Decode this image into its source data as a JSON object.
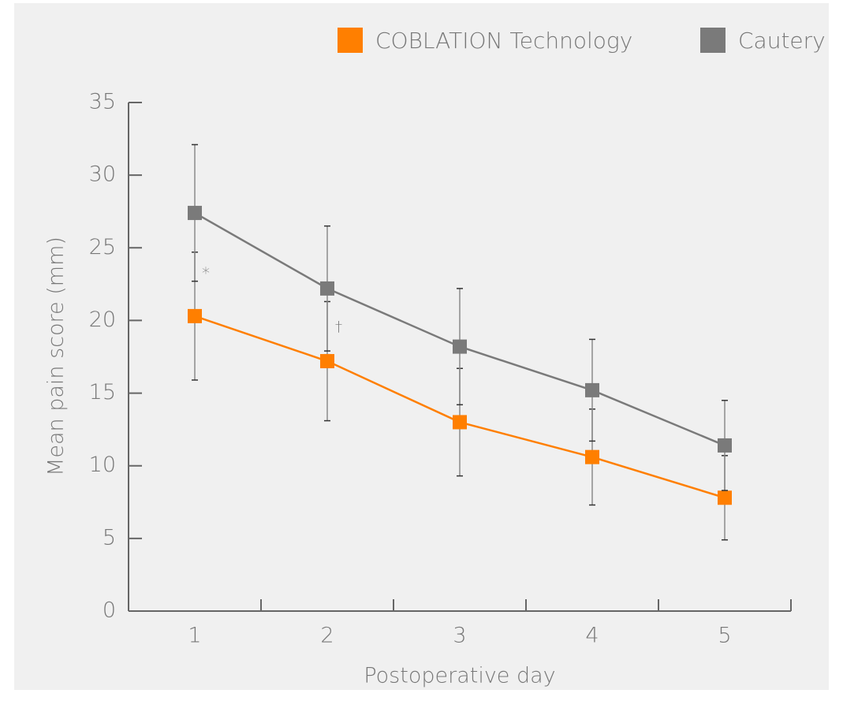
{
  "chart_data": {
    "type": "line",
    "x_label": "Postoperative day",
    "y_label": "Mean pain score (mm)",
    "categories": [
      "1",
      "2",
      "3",
      "4",
      "5"
    ],
    "series": [
      {
        "name": "COBLATION Technology",
        "color": "#ff7f00",
        "values": [
          20.3,
          17.2,
          13.0,
          10.6,
          7.8
        ],
        "errors": [
          4.4,
          4.1,
          3.7,
          3.3,
          2.9
        ]
      },
      {
        "name": "Cautery",
        "color": "#7a7a7a",
        "values": [
          27.4,
          22.2,
          18.2,
          15.2,
          11.4
        ],
        "errors": [
          4.7,
          4.3,
          4.0,
          3.5,
          3.1
        ]
      }
    ],
    "annotations": [
      "*",
      "†"
    ],
    "ylim": [
      0,
      35
    ],
    "yticks": [
      0,
      5,
      10,
      15,
      20,
      25,
      30,
      35
    ],
    "legend": "top-right",
    "grid": false
  }
}
